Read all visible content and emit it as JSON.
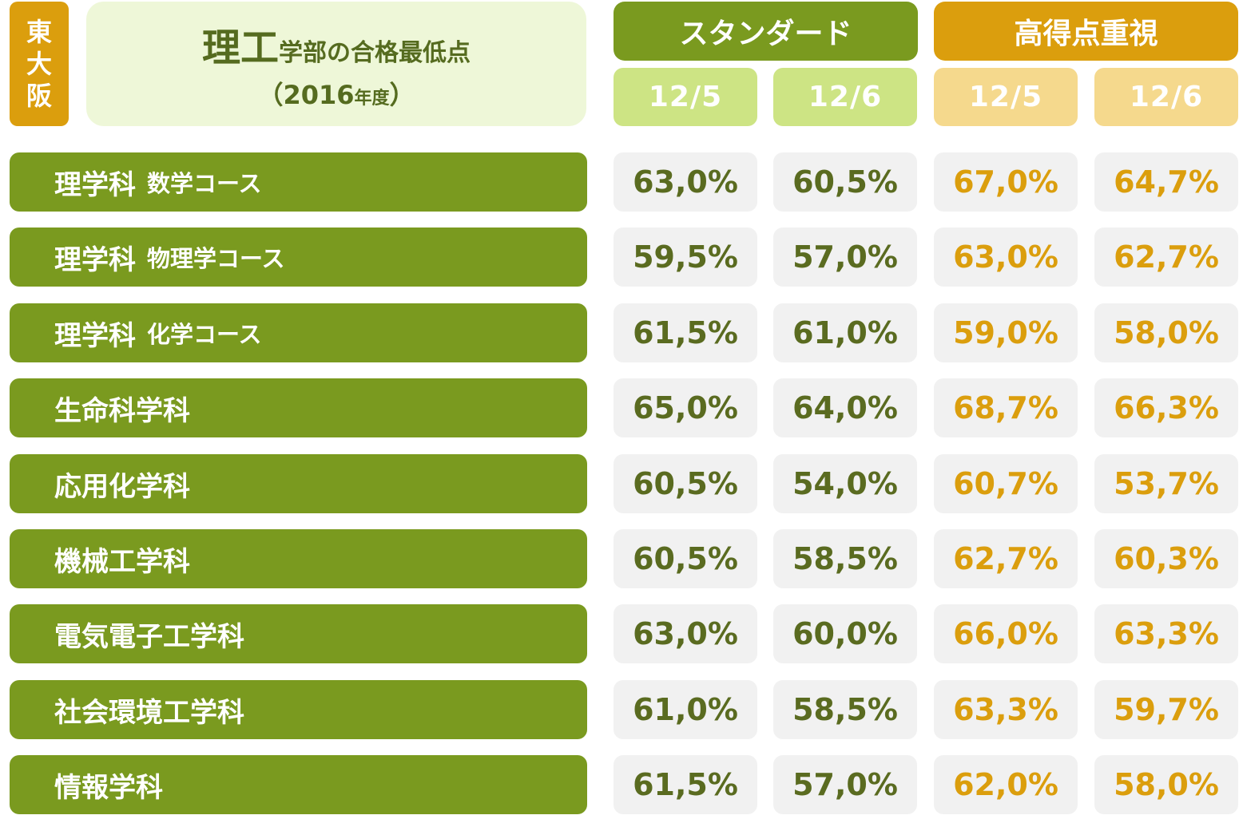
{
  "university": [
    "東",
    "大",
    "阪"
  ],
  "title": {
    "faculty": "理工",
    "suffix": "学部の合格最低点",
    "year_open": "（2016",
    "year_unit": "年度",
    "year_close": "）"
  },
  "groups": {
    "standard": "スタンダード",
    "high_score": "高得点重視"
  },
  "dates": [
    "12/5",
    "12/6",
    "12/5",
    "12/6"
  ],
  "colors": {
    "green": "#7A9A1F",
    "light_green": "#CDE484",
    "orange": "#DB9E0D",
    "light_orange": "#F5D98D",
    "title_bg": "#EEF7D8",
    "cell_bg": "#F1F1F1"
  },
  "rows": [
    {
      "dept": "理学科",
      "course": "数学コース",
      "values": [
        "63,0%",
        "60,5%",
        "67,0%",
        "64,7%"
      ]
    },
    {
      "dept": "理学科",
      "course": "物理学コース",
      "values": [
        "59,5%",
        "57,0%",
        "63,0%",
        "62,7%"
      ]
    },
    {
      "dept": "理学科",
      "course": "化学コース",
      "values": [
        "61,5%",
        "61,0%",
        "59,0%",
        "58,0%"
      ]
    },
    {
      "dept": "生命科学科",
      "course": "",
      "values": [
        "65,0%",
        "64,0%",
        "68,7%",
        "66,3%"
      ]
    },
    {
      "dept": "応用化学科",
      "course": "",
      "values": [
        "60,5%",
        "54,0%",
        "60,7%",
        "53,7%"
      ]
    },
    {
      "dept": "機械工学科",
      "course": "",
      "values": [
        "60,5%",
        "58,5%",
        "62,7%",
        "60,3%"
      ]
    },
    {
      "dept": "電気電子工学科",
      "course": "",
      "values": [
        "63,0%",
        "60,0%",
        "66,0%",
        "63,3%"
      ]
    },
    {
      "dept": "社会環境工学科",
      "course": "",
      "values": [
        "61,0%",
        "58,5%",
        "63,3%",
        "59,7%"
      ]
    },
    {
      "dept": "情報学科",
      "course": "",
      "values": [
        "61,5%",
        "57,0%",
        "62,0%",
        "58,0%"
      ]
    }
  ]
}
